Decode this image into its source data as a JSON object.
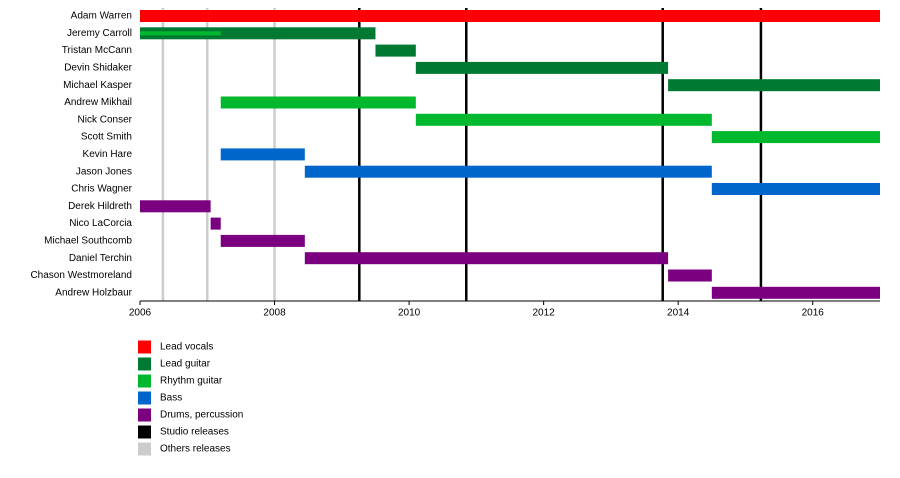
{
  "chart_data": {
    "type": "timeline",
    "categories": [
      "Adam Warren",
      "Jeremy Carroll",
      "Tristan McCann",
      "Devin Shidaker",
      "Michael Kasper",
      "Andrew Mikhail",
      "Nick Conser",
      "Scott Smith",
      "Kevin Hare",
      "Jason Jones",
      "Chris Wagner",
      "Derek Hildreth",
      "Nico LaCorcia",
      "Michael Southcomb",
      "Daniel Terchin",
      "Chason Westmoreland",
      "Andrew Holzbaur"
    ],
    "series": [
      {
        "name": "Lead vocals",
        "color": "#ff0000",
        "values": [
          [
            2006,
            2017
          ],
          null,
          null,
          null,
          null,
          null,
          null,
          null,
          null,
          null,
          null,
          null,
          null,
          null,
          null,
          null,
          null
        ]
      },
      {
        "name": "Lead guitar",
        "color": "#007a33",
        "values": [
          null,
          [
            2006,
            2009.5
          ],
          [
            2009.5,
            2010.1
          ],
          [
            2010.1,
            2013.85
          ],
          [
            2013.85,
            2017
          ],
          null,
          null,
          null,
          null,
          null,
          null,
          null,
          null,
          null,
          null,
          null,
          null
        ]
      },
      {
        "name": "Rhythm guitar",
        "color": "#00b82e",
        "values": [
          null,
          [
            2006,
            2007.2
          ],
          null,
          null,
          null,
          [
            2007.2,
            2010.1
          ],
          [
            2010.1,
            2014.5
          ],
          [
            2014.5,
            2017
          ],
          null,
          null,
          null,
          null,
          null,
          null,
          null,
          null,
          null
        ]
      },
      {
        "name": "Bass",
        "color": "#0066cc",
        "values": [
          null,
          null,
          null,
          null,
          null,
          null,
          null,
          null,
          [
            2007.2,
            2008.45
          ],
          [
            2008.45,
            2014.5
          ],
          [
            2014.5,
            2017
          ],
          null,
          null,
          null,
          null,
          null,
          null
        ]
      },
      {
        "name": "Drums, percussion",
        "color": "#7a0080",
        "values": [
          null,
          null,
          null,
          null,
          null,
          null,
          null,
          null,
          null,
          null,
          null,
          [
            2006,
            2007.05
          ],
          [
            2007.05,
            2007.2
          ],
          [
            2007.2,
            2008.45
          ],
          [
            2008.45,
            2013.85
          ],
          [
            2013.85,
            2014.5
          ],
          [
            2014.5,
            2017
          ]
        ]
      }
    ],
    "events": [
      {
        "name": "Studio releases",
        "color": "#000000",
        "values": [
          2009.26,
          2010.85,
          2013.77,
          2015.23
        ]
      },
      {
        "name": "Others releases",
        "color": "#cccccc",
        "values": [
          2006.34,
          2007.0,
          2008.0
        ]
      }
    ],
    "xlim": [
      2006,
      2017
    ],
    "xticks": [
      2006,
      2008,
      2010,
      2012,
      2014,
      2016
    ]
  }
}
